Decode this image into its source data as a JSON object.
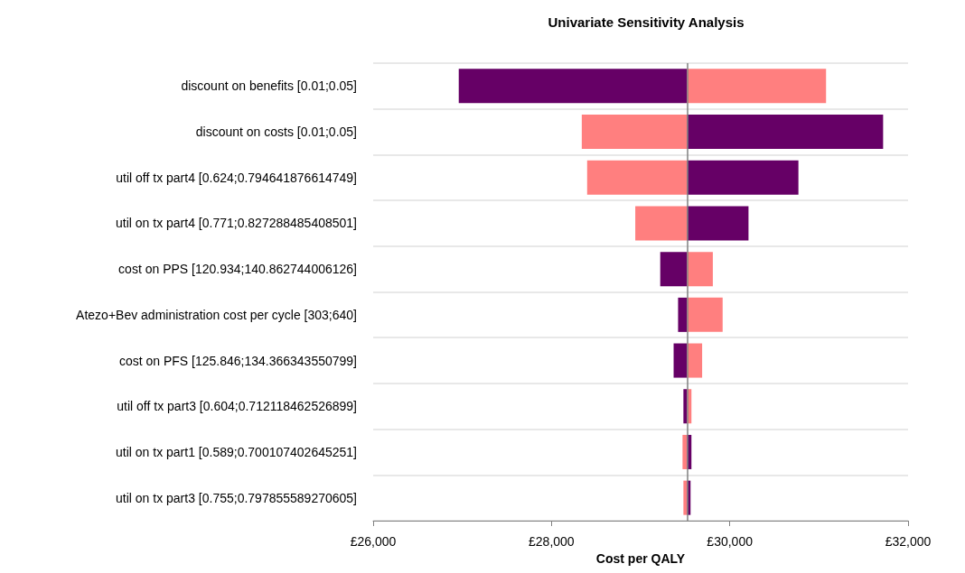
{
  "chart_data": {
    "type": "bar",
    "orientation": "horizontal",
    "title": "Univariate Sensitivity Analysis",
    "xlabel": "Cost per QALY",
    "categories": [
      "discount on benefits [0.01;0.05]",
      "discount on costs [0.01;0.05]",
      "util off tx part4 [0.624;0.794641876614749]",
      "util on tx part4 [0.771;0.827288485408501]",
      "cost on PPS [120.934;140.862744006126]",
      "Atezo+Bev administration cost per cycle [303;640]",
      "cost on PFS [125.846;134.366343550799]",
      "util off tx part3 [0.604;0.712118462526899]",
      "util on tx part1 [0.589;0.700107402645251]",
      "util on tx part3 [0.755;0.797855589270605]"
    ],
    "series": [
      {
        "color": "#660066",
        "base": [
          29520,
          29520,
          29520,
          29520,
          29520,
          29520,
          29520,
          29520,
          29520,
          29520
        ],
        "values": [
          -2560,
          2200,
          1250,
          690,
          -300,
          -100,
          -150,
          -40,
          50,
          40
        ]
      },
      {
        "color": "#ff7f7f",
        "base": [
          29520,
          29520,
          29520,
          29520,
          29520,
          29520,
          29520,
          29520,
          29520,
          29520
        ],
        "values": [
          1560,
          -1180,
          -1120,
          -580,
          290,
          400,
          170,
          50,
          -50,
          -40
        ]
      }
    ],
    "xlim": [
      26000,
      32000
    ],
    "xticks": [
      {
        "value": 26000,
        "label": "£26,000"
      },
      {
        "value": 28000,
        "label": "£28,000"
      },
      {
        "value": 30000,
        "label": "£30,000"
      },
      {
        "value": 32000,
        "label": "£32,000"
      }
    ],
    "ref_lines": [
      {
        "axis": "x",
        "value": 29520,
        "color": "#808080"
      }
    ],
    "grid": "y"
  }
}
